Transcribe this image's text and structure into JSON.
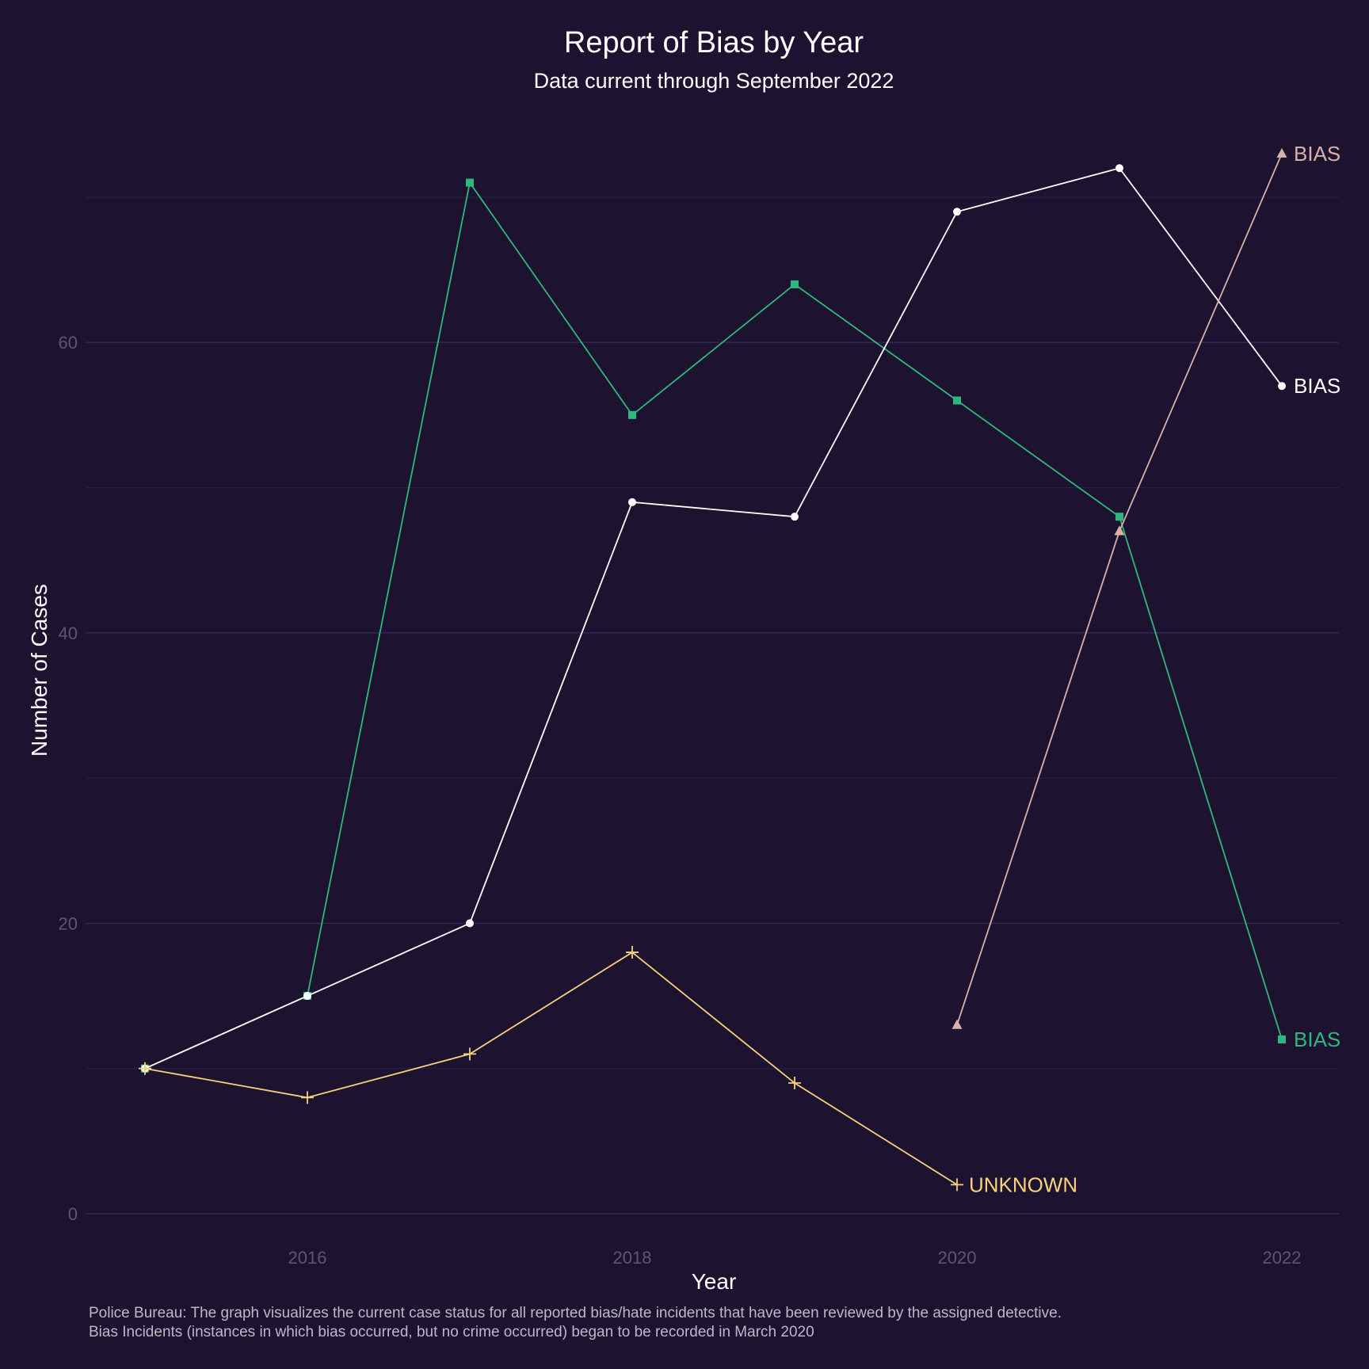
{
  "chart_data": {
    "type": "line",
    "title": "Report of Bias by Year",
    "subtitle": "Data current through September 2022",
    "xlabel": "Year",
    "ylabel": "Number of Cases",
    "x_ticks": [
      2016,
      2018,
      2020,
      2022
    ],
    "y_ticks": [
      0,
      20,
      40,
      60
    ],
    "xlim": [
      2014.75,
      2022.35
    ],
    "ylim": [
      0,
      75
    ],
    "grid": true,
    "legend": "none (labels at line ends)",
    "series": [
      {
        "name": "BIAS",
        "color": "#2db87d",
        "marker": "square",
        "x": [
          2015,
          2016,
          2017,
          2018,
          2019,
          2020,
          2021,
          2022
        ],
        "values": [
          10,
          15,
          71,
          55,
          64,
          56,
          48,
          12
        ]
      },
      {
        "name": "BIAS",
        "color": "#ffffff",
        "marker": "circle",
        "x": [
          2015,
          2016,
          2017,
          2018,
          2019,
          2020,
          2021,
          2022
        ],
        "values": [
          10,
          15,
          20,
          49,
          48,
          69,
          72,
          57
        ]
      },
      {
        "name": "BIAS",
        "color": "#d9b1a8",
        "marker": "triangle",
        "x": [
          2020,
          2021,
          2022
        ],
        "values": [
          13,
          47,
          73
        ]
      },
      {
        "name": "UNKNOWN",
        "color": "#f7d27a",
        "marker": "plus",
        "x": [
          2015,
          2016,
          2017,
          2018,
          2019,
          2020
        ],
        "values": [
          10,
          8,
          11,
          18,
          9,
          2
        ]
      }
    ],
    "caption": [
      "Police Bureau: The graph visualizes the current case status for all reported bias/hate incidents that have been reviewed by the assigned detective.",
      "Bias Incidents (instances in which bias occurred, but no crime occurred) began to be recorded in March 2020"
    ]
  }
}
